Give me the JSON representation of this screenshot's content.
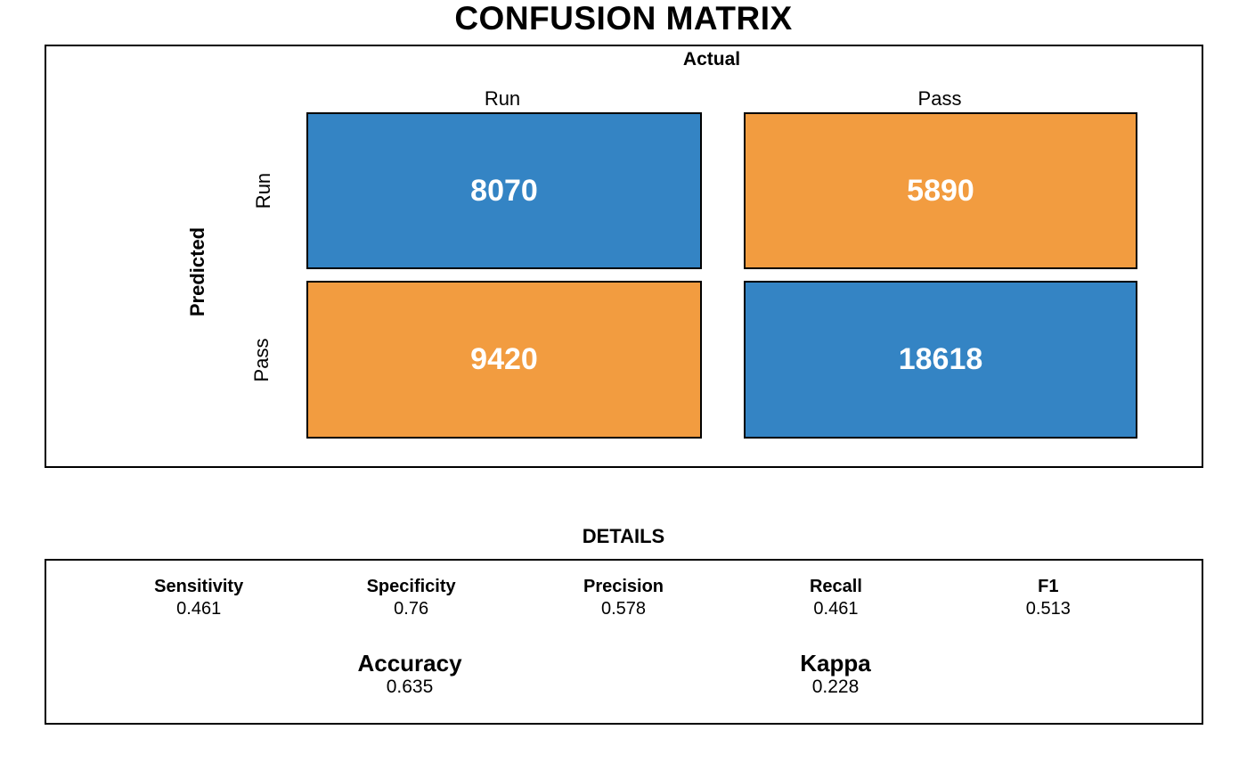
{
  "title": "CONFUSION MATRIX",
  "matrix": {
    "axis_top": "Actual",
    "axis_left": "Predicted",
    "col_labels": [
      "Run",
      "Pass"
    ],
    "row_labels": [
      "Run",
      "Pass"
    ],
    "cells": [
      {
        "row": "Run",
        "col": "Run",
        "value": "8070"
      },
      {
        "row": "Run",
        "col": "Pass",
        "value": "5890"
      },
      {
        "row": "Pass",
        "col": "Run",
        "value": "9420"
      },
      {
        "row": "Pass",
        "col": "Pass",
        "value": "18618"
      }
    ]
  },
  "details": {
    "heading": "DETAILS",
    "metrics": [
      {
        "label": "Sensitivity",
        "value": "0.461"
      },
      {
        "label": "Specificity",
        "value": "0.76"
      },
      {
        "label": "Precision",
        "value": "0.578"
      },
      {
        "label": "Recall",
        "value": "0.461"
      },
      {
        "label": "F1",
        "value": "0.513"
      }
    ],
    "summary": [
      {
        "label": "Accuracy",
        "value": "0.635"
      },
      {
        "label": "Kappa",
        "value": "0.228"
      }
    ]
  },
  "colors": {
    "match_cell": "#3484C4",
    "mismatch_cell": "#F29C40",
    "cell_text": "#FFFFFF",
    "border": "#000000",
    "background": "#FFFFFF"
  },
  "chart_data": {
    "type": "heatmap",
    "title": "CONFUSION MATRIX",
    "x_axis_label": "Actual",
    "y_axis_label": "Predicted",
    "x_categories": [
      "Run",
      "Pass"
    ],
    "y_categories": [
      "Run",
      "Pass"
    ],
    "values": [
      [
        8070,
        5890
      ],
      [
        9420,
        18618
      ]
    ],
    "cell_colors": [
      [
        "#3484C4",
        "#F29C40"
      ],
      [
        "#F29C40",
        "#3484C4"
      ]
    ],
    "legend": "none",
    "grid": false,
    "metrics": {
      "sensitivity": 0.461,
      "specificity": 0.76,
      "precision": 0.578,
      "recall": 0.461,
      "f1": 0.513,
      "accuracy": 0.635,
      "kappa": 0.228
    }
  }
}
